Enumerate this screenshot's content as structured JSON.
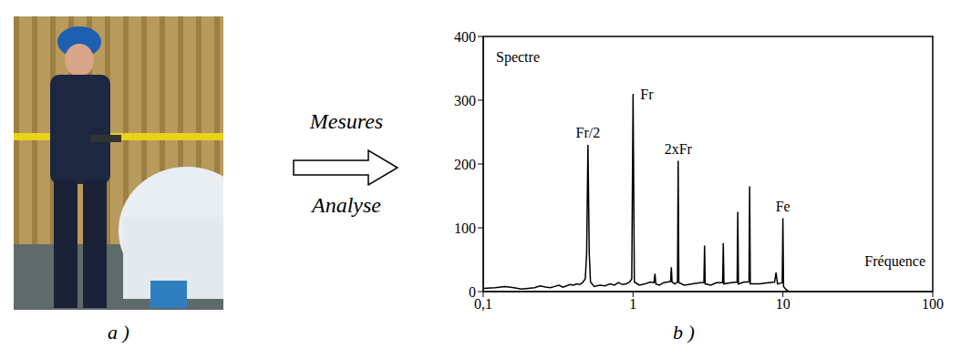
{
  "figure": {
    "panel_a": {
      "label": "a )"
    },
    "arrow": {
      "top": "Mesures",
      "bottom": "Analyse"
    },
    "panel_b": {
      "label": "b )"
    }
  },
  "chart_data": {
    "type": "line",
    "title": "Spectre",
    "xlabel": "Fréquence",
    "log": "x",
    "grid": false,
    "color": "#000000",
    "xlim": [
      0.1,
      100
    ],
    "xticks": [
      {
        "value": 0.1,
        "label": "0,1"
      },
      1,
      10,
      100
    ],
    "ylim": [
      0,
      400
    ],
    "yticks": [
      0,
      100,
      200,
      300,
      400
    ],
    "x": [
      0.1,
      0.12,
      0.14,
      0.16,
      0.18,
      0.2,
      0.22,
      0.24,
      0.26,
      0.28,
      0.3,
      0.32,
      0.34,
      0.36,
      0.38,
      0.4,
      0.42,
      0.44,
      0.46,
      0.48,
      0.49,
      0.5,
      0.51,
      0.52,
      0.55,
      0.6,
      0.65,
      0.7,
      0.75,
      0.8,
      0.85,
      0.9,
      0.95,
      0.98,
      1.0,
      1.02,
      1.1,
      1.2,
      1.3,
      1.38,
      1.4,
      1.42,
      1.5,
      1.6,
      1.7,
      1.78,
      1.8,
      1.82,
      1.9,
      1.98,
      2.0,
      2.02,
      2.2,
      2.5,
      2.8,
      2.97,
      3.0,
      3.03,
      3.3,
      3.6,
      3.96,
      4.0,
      4.04,
      4.5,
      4.95,
      5.0,
      5.05,
      5.5,
      5.94,
      6.0,
      6.06,
      7,
      8,
      8.8,
      9,
      9.2,
      9.9,
      10,
      10.1,
      10.5,
      11
    ],
    "values": [
      5,
      6,
      8,
      6,
      4,
      5,
      6,
      9,
      7,
      6,
      8,
      10,
      7,
      9,
      11,
      10,
      12,
      11,
      14,
      20,
      60,
      230,
      60,
      15,
      8,
      10,
      9,
      12,
      10,
      14,
      11,
      12,
      15,
      20,
      310,
      15,
      10,
      12,
      15,
      14,
      28,
      12,
      10,
      14,
      15,
      16,
      38,
      15,
      12,
      15,
      205,
      14,
      10,
      12,
      14,
      14,
      72,
      12,
      10,
      14,
      14,
      76,
      12,
      14,
      15,
      125,
      12,
      15,
      15,
      165,
      12,
      12,
      14,
      15,
      30,
      12,
      14,
      115,
      8,
      3,
      0
    ],
    "annotations": [
      {
        "text": "Fr/2",
        "x": 0.5
      },
      {
        "text": "Fr",
        "x": 1.0
      },
      {
        "text": "2xFr",
        "x": 2.0
      },
      {
        "text": "Fe",
        "x": 10
      }
    ]
  }
}
